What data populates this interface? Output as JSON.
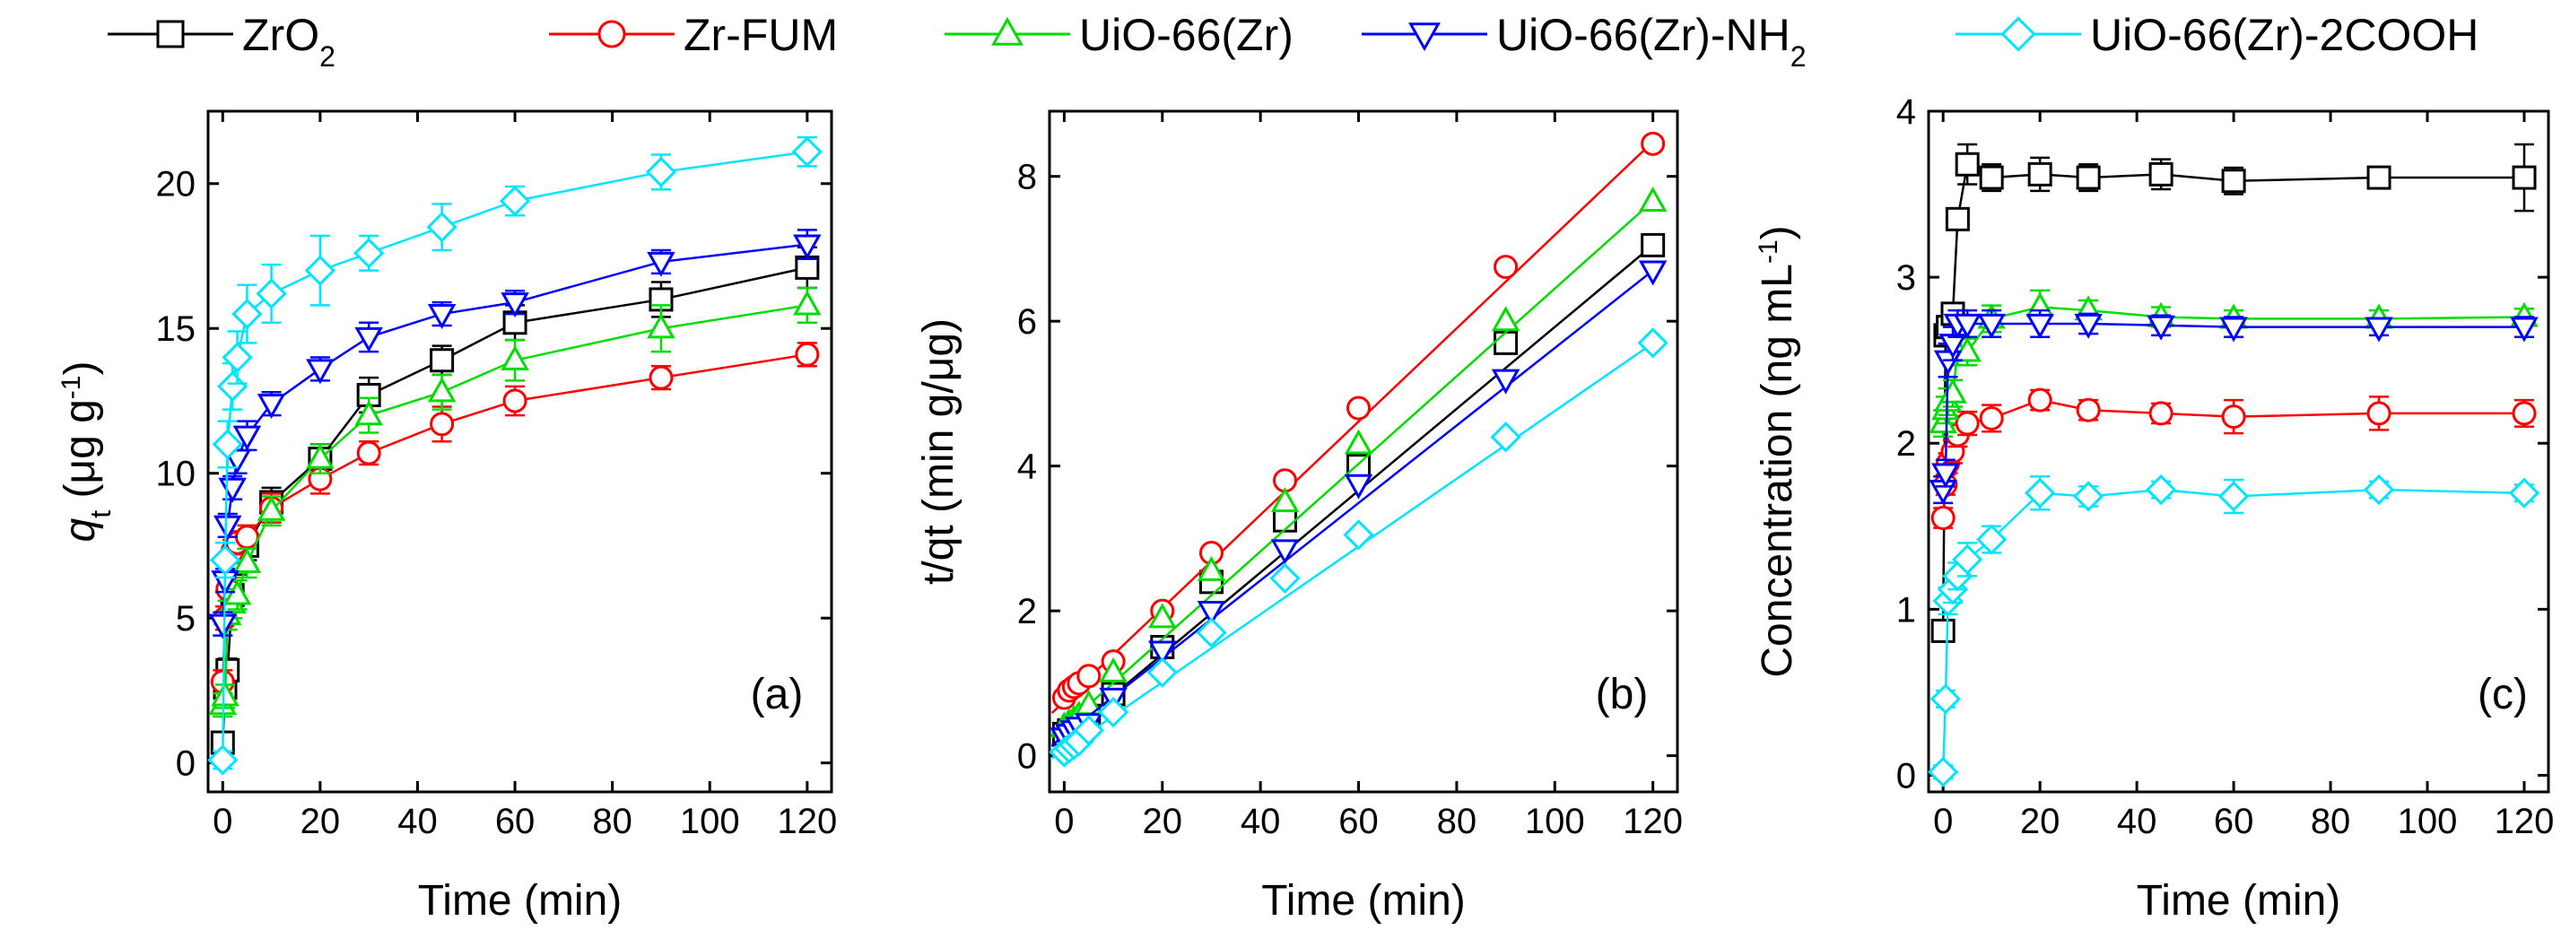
{
  "series_styles": [
    {
      "key": "zro2",
      "color": "#000000",
      "marker": "square"
    },
    {
      "key": "zrfum",
      "color": "#ff0000",
      "marker": "circle"
    },
    {
      "key": "uio66",
      "color": "#00dd00",
      "marker": "triangle-up"
    },
    {
      "key": "uio66nh2",
      "color": "#0000ff",
      "marker": "triangle-down"
    },
    {
      "key": "uio662cooh",
      "color": "#00e5ff",
      "marker": "diamond"
    }
  ],
  "legend": [
    {
      "main": "ZrO",
      "sub": "2",
      "tail": ""
    },
    {
      "main": "Zr-FUM",
      "sub": "",
      "tail": ""
    },
    {
      "main": "UiO-66(Zr)",
      "sub": "",
      "tail": ""
    },
    {
      "main": "UiO-66(Zr)-NH",
      "sub": "2",
      "tail": ""
    },
    {
      "main": "UiO-66(Zr)-2COOH",
      "sub": "",
      "tail": ""
    }
  ],
  "chart_data": [
    {
      "panel": "(a)",
      "type": "line",
      "xlabel": "Time (min)",
      "ylabel": {
        "q": "q",
        "sub": "t",
        "mid": " (μg g",
        "sup": "-1",
        "end": ")"
      },
      "xlim": [
        -3,
        125
      ],
      "ylim": [
        -1,
        22.5
      ],
      "xticks": [
        0,
        20,
        40,
        60,
        80,
        100,
        120
      ],
      "yticks": [
        0,
        5,
        10,
        15,
        20
      ],
      "x": [
        0,
        0.5,
        1,
        2,
        3,
        5,
        10,
        20,
        30,
        45,
        60,
        90,
        120
      ],
      "series": [
        {
          "name": "ZrO2",
          "values": [
            0.7,
            2.6,
            3.2,
            5.8,
            7.0,
            7.5,
            9.0,
            10.5,
            12.7,
            13.9,
            15.2,
            16.0,
            17.1
          ],
          "err": [
            0.3,
            0.4,
            0.4,
            0.5,
            0.5,
            0.5,
            0.5,
            0.5,
            0.6,
            0.5,
            0.6,
            0.6,
            0.7
          ]
        },
        {
          "name": "Zr-FUM",
          "values": [
            2.8,
            5.0,
            6.0,
            7.3,
            7.6,
            7.8,
            8.8,
            9.8,
            10.7,
            11.7,
            12.5,
            13.3,
            14.1
          ],
          "err": [
            0.4,
            0.4,
            0.4,
            0.4,
            0.4,
            0.4,
            0.5,
            0.5,
            0.4,
            0.6,
            0.5,
            0.4,
            0.4
          ]
        },
        {
          "name": "UiO-66(Zr)",
          "values": [
            2.0,
            2.3,
            5.1,
            5.5,
            5.8,
            6.9,
            8.7,
            10.5,
            12.0,
            12.8,
            13.9,
            15.0,
            15.8
          ],
          "err": [
            0.4,
            0.4,
            0.5,
            0.5,
            0.5,
            0.5,
            0.5,
            0.5,
            0.6,
            0.6,
            0.7,
            0.8,
            0.6
          ]
        },
        {
          "name": "UiO-66(Zr)-NH2",
          "values": [
            4.8,
            6.3,
            8.2,
            9.5,
            10.5,
            11.3,
            12.4,
            13.6,
            14.7,
            15.5,
            15.9,
            17.3,
            17.9
          ],
          "err": [
            0.4,
            0.4,
            0.4,
            0.4,
            0.5,
            0.5,
            0.4,
            0.4,
            0.5,
            0.4,
            0.4,
            0.4,
            0.5
          ]
        },
        {
          "name": "UiO-66(Zr)-2COOH",
          "values": [
            0.1,
            7.0,
            11.0,
            13.0,
            14.0,
            15.5,
            16.2,
            17.0,
            17.6,
            18.5,
            19.4,
            20.4,
            21.1
          ],
          "err": [
            0.3,
            0.6,
            0.8,
            0.8,
            0.9,
            1.0,
            1.0,
            1.2,
            0.6,
            0.8,
            0.5,
            0.6,
            0.5
          ]
        }
      ]
    },
    {
      "panel": "(b)",
      "type": "line",
      "xlabel": "Time (min)",
      "ylabel": {
        "text": "t/qt (min g/μg)"
      },
      "xlim": [
        -3,
        125
      ],
      "ylim": [
        -0.5,
        8.9
      ],
      "xticks": [
        0,
        20,
        40,
        60,
        80,
        100,
        120
      ],
      "yticks": [
        0,
        2,
        4,
        6,
        8
      ],
      "x": [
        0,
        1,
        2,
        3,
        5,
        10,
        20,
        30,
        45,
        60,
        90,
        120
      ],
      "series": [
        {
          "name": "ZrO2",
          "values": [
            0.3,
            0.35,
            0.4,
            0.45,
            0.55,
            0.85,
            1.5,
            2.4,
            3.25,
            4.0,
            5.7,
            7.05
          ],
          "fit": [
            0.27,
            0.0565
          ]
        },
        {
          "name": "Zr-FUM",
          "values": [
            0.8,
            0.9,
            0.95,
            1.0,
            1.1,
            1.3,
            2.0,
            2.8,
            3.8,
            4.8,
            6.75,
            8.45
          ],
          "fit": [
            0.75,
            0.0644
          ]
        },
        {
          "name": "UiO-66(Zr)",
          "values": [
            0.4,
            0.45,
            0.5,
            0.55,
            0.7,
            1.15,
            1.9,
            2.55,
            3.5,
            4.3,
            6.0,
            7.65
          ],
          "fit": [
            0.4,
            0.0605
          ]
        },
        {
          "name": "UiO-66(Zr)-NH2",
          "values": [
            0.25,
            0.3,
            0.35,
            0.4,
            0.45,
            0.8,
            1.45,
            2.0,
            2.85,
            3.75,
            5.2,
            6.7
          ],
          "fit": [
            0.28,
            0.0535
          ]
        },
        {
          "name": "UiO-66(Zr)-2COOH",
          "values": [
            0.05,
            0.1,
            0.15,
            0.2,
            0.35,
            0.6,
            1.15,
            1.7,
            2.45,
            3.05,
            4.4,
            5.7
          ],
          "fit": [
            0.08,
            0.0468
          ]
        }
      ]
    },
    {
      "panel": "(c)",
      "type": "line",
      "xlabel": "Time (min)",
      "ylabel": {
        "q": "Concentration (ng mL",
        "sup": "-1",
        "end": ")"
      },
      "xlim": [
        -3,
        125
      ],
      "ylim": [
        -0.1,
        4.0
      ],
      "xticks": [
        0,
        20,
        40,
        60,
        80,
        100,
        120
      ],
      "yticks": [
        0,
        1,
        2,
        3,
        4
      ],
      "x": [
        0,
        0.5,
        1,
        2,
        3,
        5,
        10,
        20,
        30,
        45,
        60,
        90,
        120
      ],
      "series": [
        {
          "name": "ZrO2",
          "values": [
            0.87,
            2.65,
            2.7,
            2.78,
            3.35,
            3.68,
            3.6,
            3.62,
            3.6,
            3.62,
            3.58,
            3.6,
            3.6
          ],
          "err": [
            0.04,
            0.05,
            0.05,
            0.06,
            0.05,
            0.12,
            0.08,
            0.1,
            0.08,
            0.09,
            0.08,
            0.04,
            0.2
          ]
        },
        {
          "name": "Zr-FUM",
          "values": [
            1.55,
            1.75,
            1.88,
            1.95,
            2.05,
            2.12,
            2.15,
            2.26,
            2.2,
            2.18,
            2.16,
            2.18,
            2.18
          ],
          "err": [
            0.06,
            0.06,
            0.06,
            0.07,
            0.07,
            0.07,
            0.08,
            0.06,
            0.06,
            0.06,
            0.1,
            0.1,
            0.08
          ]
        },
        {
          "name": "UiO-66(Zr)",
          "values": [
            2.12,
            2.2,
            2.25,
            2.3,
            2.55,
            2.55,
            2.75,
            2.82,
            2.8,
            2.76,
            2.75,
            2.75,
            2.76
          ],
          "err": [
            0.08,
            0.08,
            0.08,
            0.08,
            0.08,
            0.08,
            0.08,
            0.1,
            0.06,
            0.06,
            0.05,
            0.05,
            0.05
          ]
        },
        {
          "name": "UiO-66(Zr)-NH2",
          "values": [
            1.72,
            1.82,
            2.5,
            2.6,
            2.72,
            2.72,
            2.72,
            2.72,
            2.72,
            2.71,
            2.7,
            2.7,
            2.7
          ],
          "err": [
            0.08,
            0.08,
            0.1,
            0.1,
            0.08,
            0.08,
            0.08,
            0.08,
            0.06,
            0.06,
            0.06,
            0.05,
            0.06
          ]
        },
        {
          "name": "UiO-66(Zr)-2COOH",
          "values": [
            0.02,
            0.46,
            1.05,
            1.12,
            1.2,
            1.3,
            1.42,
            1.7,
            1.68,
            1.72,
            1.68,
            1.72,
            1.7
          ],
          "err": [
            0.04,
            0.05,
            0.08,
            0.08,
            0.08,
            0.1,
            0.08,
            0.1,
            0.06,
            0.05,
            0.1,
            0.05,
            0.05
          ]
        }
      ]
    }
  ]
}
